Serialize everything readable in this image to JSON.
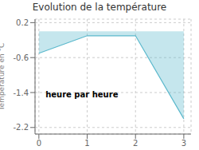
{
  "chart_data": {
    "type": "area",
    "title": "Evolution de la température",
    "ylabel": "Température en °C",
    "annotation": "heure par heure",
    "x": [
      0,
      1,
      2,
      3
    ],
    "values": [
      -0.5,
      -0.1,
      -0.1,
      -2.0
    ],
    "color": "#5ab8cc",
    "xlim": [
      -0.08,
      3.15
    ],
    "ylim": [
      -2.35,
      0.28
    ],
    "xticks": [
      0,
      1,
      2,
      3
    ],
    "yticks": [
      0.2,
      -0.6,
      -1.4,
      -2.2
    ],
    "grid": true
  }
}
